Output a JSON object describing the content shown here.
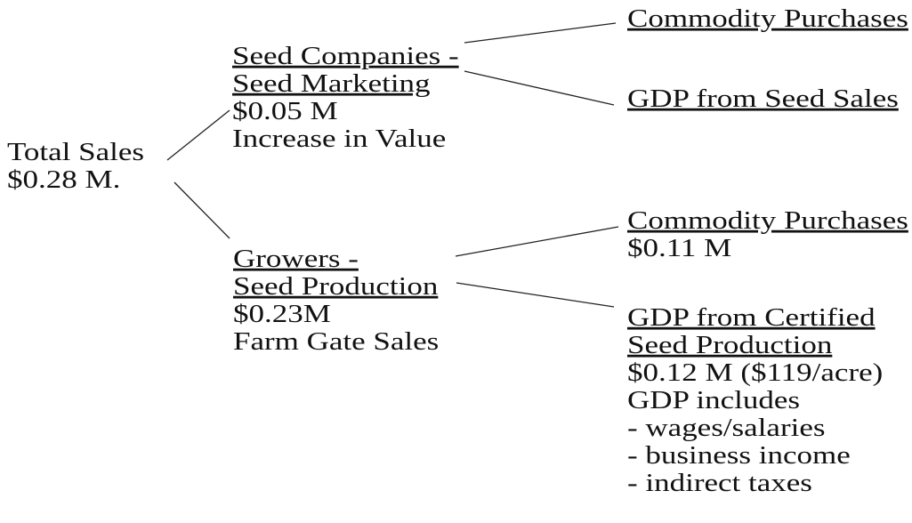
{
  "nodes": [
    {
      "title": [
        "Total Sales",
        "$0.28 M."
      ]
    },
    {
      "title": [
        "Seed Companies -",
        "Seed Marketing"
      ],
      "details": [
        "$0.05 M",
        "Increase in Value"
      ]
    },
    {
      "title": [
        "Commodity Purchases"
      ]
    },
    {
      "title": [
        "GDP from Seed Sales"
      ]
    },
    {
      "title": [
        "Growers -",
        "Seed Production"
      ],
      "details": [
        "$0.23M",
        "Farm Gate Sales"
      ]
    },
    {
      "title": [
        "Commodity Purchases"
      ],
      "details": [
        "$0.11 M"
      ]
    },
    {
      "title": [
        "GDP from Certified",
        "Seed Production"
      ],
      "details": [
        "$0.12 M ($119/acre)",
        "GDP includes",
        "- wages/salaries",
        "- business income",
        "- indirect taxes"
      ]
    }
  ]
}
